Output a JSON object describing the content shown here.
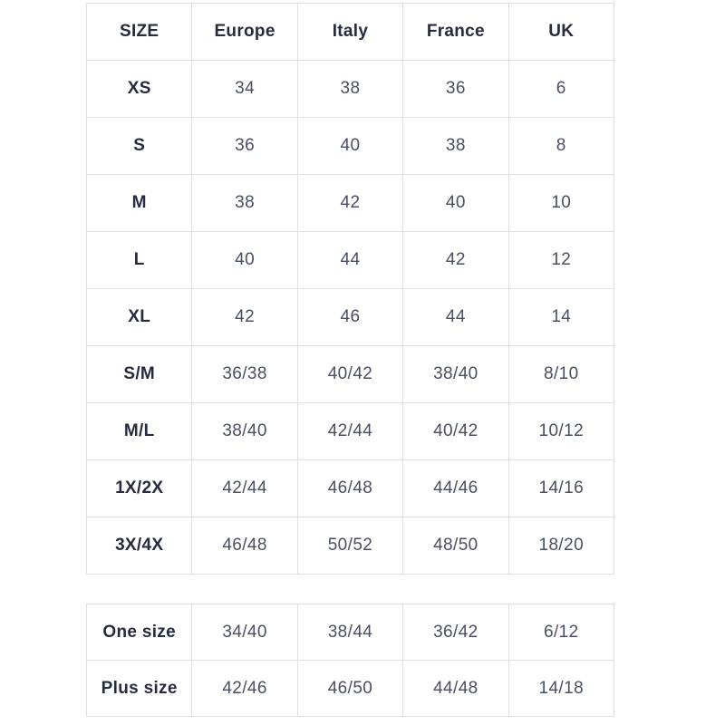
{
  "style": {
    "background": "#ffffff",
    "border_color": "#e0e0e0",
    "header_text_color": "#252c3f",
    "value_text_color": "#474f63"
  },
  "chart_data": [
    {
      "type": "table",
      "columns": [
        "SIZE",
        "Europe",
        "Italy",
        "France",
        "UK"
      ],
      "rows": [
        [
          "XS",
          "34",
          "38",
          "36",
          "6"
        ],
        [
          "S",
          "36",
          "40",
          "38",
          "8"
        ],
        [
          "M",
          "38",
          "42",
          "40",
          "10"
        ],
        [
          "L",
          "40",
          "44",
          "42",
          "12"
        ],
        [
          "XL",
          "42",
          "46",
          "44",
          "14"
        ],
        [
          "S/M",
          "36/38",
          "40/42",
          "38/40",
          "8/10"
        ],
        [
          "M/L",
          "38/40",
          "42/44",
          "40/42",
          "10/12"
        ],
        [
          "1X/2X",
          "42/44",
          "46/48",
          "44/46",
          "14/16"
        ],
        [
          "3X/4X",
          "46/48",
          "50/52",
          "48/50",
          "18/20"
        ]
      ]
    },
    {
      "type": "table",
      "columns": [
        "SIZE",
        "Europe",
        "Italy",
        "France",
        "UK"
      ],
      "rows": [
        [
          "One size",
          "34/40",
          "38/44",
          "36/42",
          "6/12"
        ],
        [
          "Plus size",
          "42/46",
          "46/50",
          "44/48",
          "14/18"
        ]
      ]
    }
  ]
}
